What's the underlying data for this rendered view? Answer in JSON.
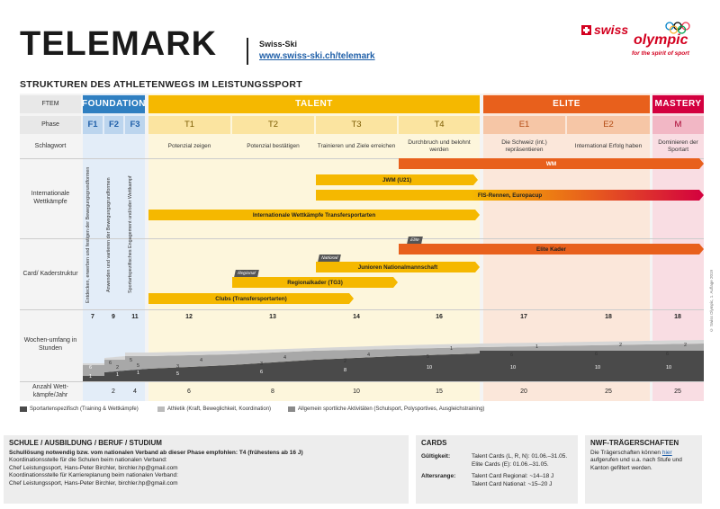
{
  "header": {
    "title": "TELEMARK",
    "org": "Swiss-Ski",
    "url": "www.swiss-ski.ch/telemark",
    "subtitle": "STRUKTUREN DES ATHLETENWEGS IM LEISTUNGSSPORT",
    "logo": {
      "line1": "swiss",
      "line2": "olympic",
      "tagline": "for the spirit of sport"
    }
  },
  "rows": {
    "ftem": "FTEM",
    "phase": "Phase",
    "schlagwort": "Schlagwort",
    "wettkaempfe": "Internationale Wettkämpfe",
    "card": "Card/ Kaderstruktur",
    "wochenumfang": "Wochen-umfang in Stunden",
    "anzahl": "Anzahl Wett-kämpfe/Jahr"
  },
  "stages": {
    "foundation": "FOUNDATION",
    "talent": "TALENT",
    "elite": "ELITE",
    "mastery": "MASTERY"
  },
  "phases": [
    "F1",
    "F2",
    "F3",
    "T1",
    "T2",
    "T3",
    "T4",
    "E1",
    "E2",
    "M"
  ],
  "schlagworte": {
    "t1": "Potenzial zeigen",
    "t2": "Potenzial bestätigen",
    "t3": "Trainieren und Ziele erreichen",
    "t4": "Durchbruch und belohnt werden",
    "e1": "Die Schweiz (int.) repräsentieren",
    "e2": "International Erfolg haben",
    "m": "Dominieren der Sportart"
  },
  "foundation_text": {
    "f1": "Entdecken, erwerben und festigen der Bewegungsgrundformen",
    "f2": "Anwenden und variieren der Bewegungsgrundformen",
    "f3": "Sportartspezifisches Engagement und/oder Wettkampf"
  },
  "competitions": {
    "wm": "WM",
    "jwm": "JWM (U21)",
    "fis": "FIS-Rennen, Europacup",
    "intl": "Internationale Wettkämpfe Transfersportarten"
  },
  "cards": {
    "elite_tag": "Elite",
    "elite": "Elite Kader",
    "national_tag": "National",
    "junioren": "Junioren Nationalmannschaft",
    "regional_tag": "Regional",
    "regional": "Regionalkader (TG3)",
    "clubs": "Clubs (Transfersportarten)"
  },
  "hours": {
    "totals": [
      "7",
      "9",
      "11",
      "12",
      "13",
      "14",
      "16",
      "17",
      "18",
      "18"
    ],
    "f1": [
      "6",
      "1"
    ],
    "f2": [
      "6",
      "2",
      "1"
    ],
    "f3": [
      "5",
      "5",
      "1"
    ],
    "t1": [
      "4",
      "3",
      "5"
    ],
    "t2": [
      "4",
      "3",
      "6"
    ],
    "t3": [
      "4",
      "2",
      "8"
    ],
    "t4": [
      "1",
      "5",
      "10"
    ],
    "e1": [
      "1",
      "6",
      "10"
    ],
    "e2": [
      "2",
      "6",
      "10"
    ],
    "m": [
      "2",
      "6",
      "10"
    ]
  },
  "competitions_per_year": [
    "2",
    "4",
    "6",
    "8",
    "10",
    "15",
    "20",
    "25",
    "25"
  ],
  "legend": [
    "Sportartenspezifisch (Training & Wettkämpfe)",
    "Athletik (Kraft, Beweglichkeit, Koordination)",
    "Allgemein sportliche Aktivitäten (Schulsport, Polysportives, Ausgleichstraining)"
  ],
  "school": {
    "heading": "SCHULE / AUSBILDUNG / BERUF / STUDIUM",
    "line1": "Schullösung notwendig bzw. vom nationalen Verband ab dieser Phase empfohlen: T4 (frühestens ab 16 J)",
    "line2": "Koordinationsstelle für die Schulen beim nationalen Verband:",
    "line3": "Chef Leistungssport, Hans-Peter Birchler, birchler.hp@gmail.com",
    "line4": "Koordinationsstelle für Karriereplanung beim nationalen Verband:",
    "line5": "Chef Leistungssport, Hans-Peter Birchler, birchler.hp@gmail.com"
  },
  "cards_box": {
    "heading": "CARDS",
    "gueltig_label": "Gültigkeit:",
    "gueltig1": "Talent Cards (L, R, N): 01.06.–31.05.",
    "gueltig2": "Elite Cards (E): 01.06.–31.05.",
    "alter_label": "Altersrange:",
    "alter1": "Talent Card Regional: ~14–18 J",
    "alter2": "Talent Card National: ~15–20 J"
  },
  "nwf": {
    "heading": "NWF-TRÄGERSCHAFTEN",
    "text_before": "Die Trägerschaften können",
    "link": "hier",
    "text_after": "aufgerufen und u.a. nach Stufe und Kanton gefiltert werden."
  },
  "footer": "© Swiss Olympic, 1. Auflage 2019",
  "colors": {
    "foundation": "#2f7fc1",
    "foundation_light": "#d7e6f5",
    "talent": "#f5b800",
    "talent_light": "#fdf0c4",
    "elite": "#e8601c",
    "elite_light": "#f9ddc9",
    "mastery": "#d3003f",
    "mastery_light": "#f8d3dc"
  }
}
